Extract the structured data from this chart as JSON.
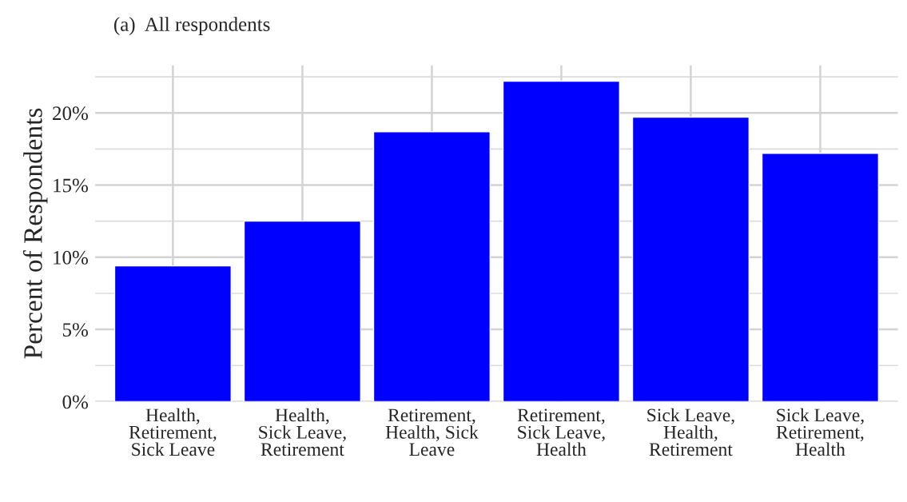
{
  "chart_data": {
    "type": "bar",
    "title": "(a)  All respondents",
    "ylabel": "Percent of Respondents",
    "categories": [
      "Health,\nRetirement,\nSick Leave",
      "Health,\nSick Leave,\nRetirement",
      "Retirement,\nHealth, Sick\nLeave",
      "Retirement,\nSick Leave,\nHealth",
      "Sick Leave,\nHealth,\nRetirement",
      "Sick Leave,\nRetirement,\nHealth"
    ],
    "values": [
      9.4,
      12.5,
      18.7,
      22.2,
      19.7,
      17.2
    ],
    "color": "#0000ff",
    "ylim": [
      0,
      23.3
    ],
    "yticks": [
      {
        "value": 0,
        "label": "0%"
      },
      {
        "value": 5,
        "label": "5%"
      },
      {
        "value": 10,
        "label": "10%"
      },
      {
        "value": 15,
        "label": "15%"
      },
      {
        "value": 20,
        "label": "20%"
      }
    ],
    "grid": true,
    "legend": false
  }
}
